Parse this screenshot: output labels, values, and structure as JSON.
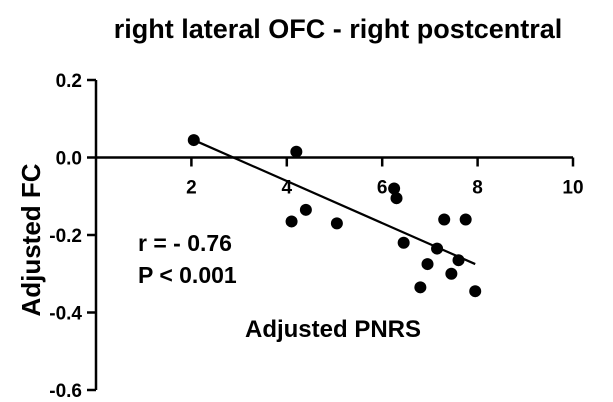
{
  "chart_data": {
    "type": "scatter",
    "title": "right lateral OFC - right postcentral",
    "xlabel": "Adjusted PNRS",
    "ylabel": "Adjusted FC",
    "xlim": [
      0,
      10
    ],
    "ylim": [
      -0.6,
      0.2
    ],
    "x_ticks": [
      2,
      4,
      6,
      8,
      10
    ],
    "x_tick_labels": [
      "2",
      "4",
      "6",
      "8",
      "10"
    ],
    "y_ticks": [
      0.2,
      0.0,
      -0.2,
      -0.4,
      -0.6
    ],
    "y_tick_labels": [
      "0.2",
      "0.0",
      "-0.2",
      "-0.4",
      "-0.6"
    ],
    "x_axis_at_y": 0,
    "grid": false,
    "legend": "none",
    "points": [
      {
        "x": 2.05,
        "y": 0.045
      },
      {
        "x": 4.2,
        "y": 0.015
      },
      {
        "x": 4.1,
        "y": -0.165
      },
      {
        "x": 4.4,
        "y": -0.135
      },
      {
        "x": 5.05,
        "y": -0.17
      },
      {
        "x": 6.25,
        "y": -0.08
      },
      {
        "x": 6.3,
        "y": -0.105
      },
      {
        "x": 6.45,
        "y": -0.22
      },
      {
        "x": 6.8,
        "y": -0.335
      },
      {
        "x": 6.95,
        "y": -0.275
      },
      {
        "x": 7.15,
        "y": -0.235
      },
      {
        "x": 7.3,
        "y": -0.16
      },
      {
        "x": 7.45,
        "y": -0.3
      },
      {
        "x": 7.6,
        "y": -0.265
      },
      {
        "x": 7.75,
        "y": -0.16
      },
      {
        "x": 7.95,
        "y": -0.345
      }
    ],
    "fit_line": {
      "x": [
        2.05,
        7.95
      ],
      "y": [
        0.045,
        -0.275
      ]
    },
    "annotations": [
      "r = - 0.76",
      "P < 0.001"
    ]
  }
}
